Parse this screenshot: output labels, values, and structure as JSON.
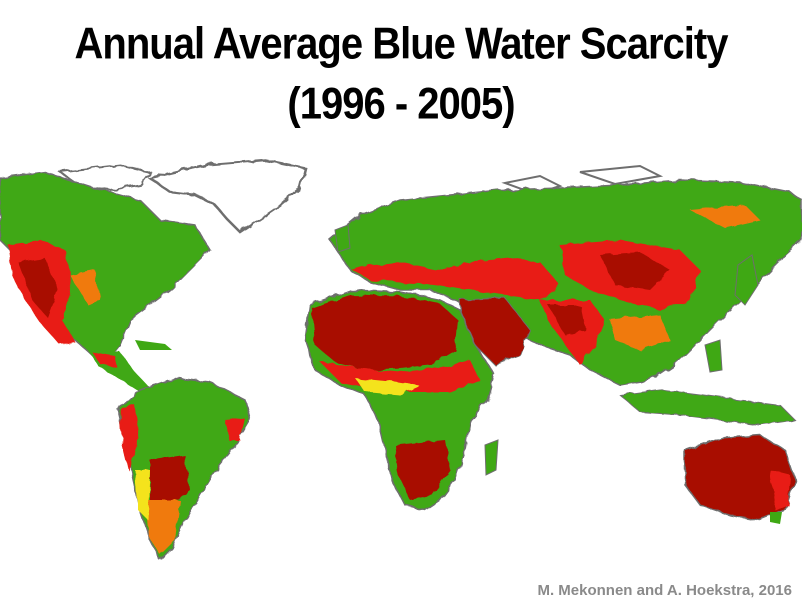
{
  "title": {
    "line1": "Annual Average Blue Water Scarcity",
    "line2": "(1996 - 2005)"
  },
  "credit": "M. Mekonnen and A. Hoekstra, 2016",
  "colors": {
    "low": "#3fa814",
    "moderate": "#f4e31c",
    "significant": "#f07a10",
    "high": "#e81f12",
    "severe": "#a80b00",
    "ice": "#ffffff",
    "coast": "#6e6e6e"
  }
}
